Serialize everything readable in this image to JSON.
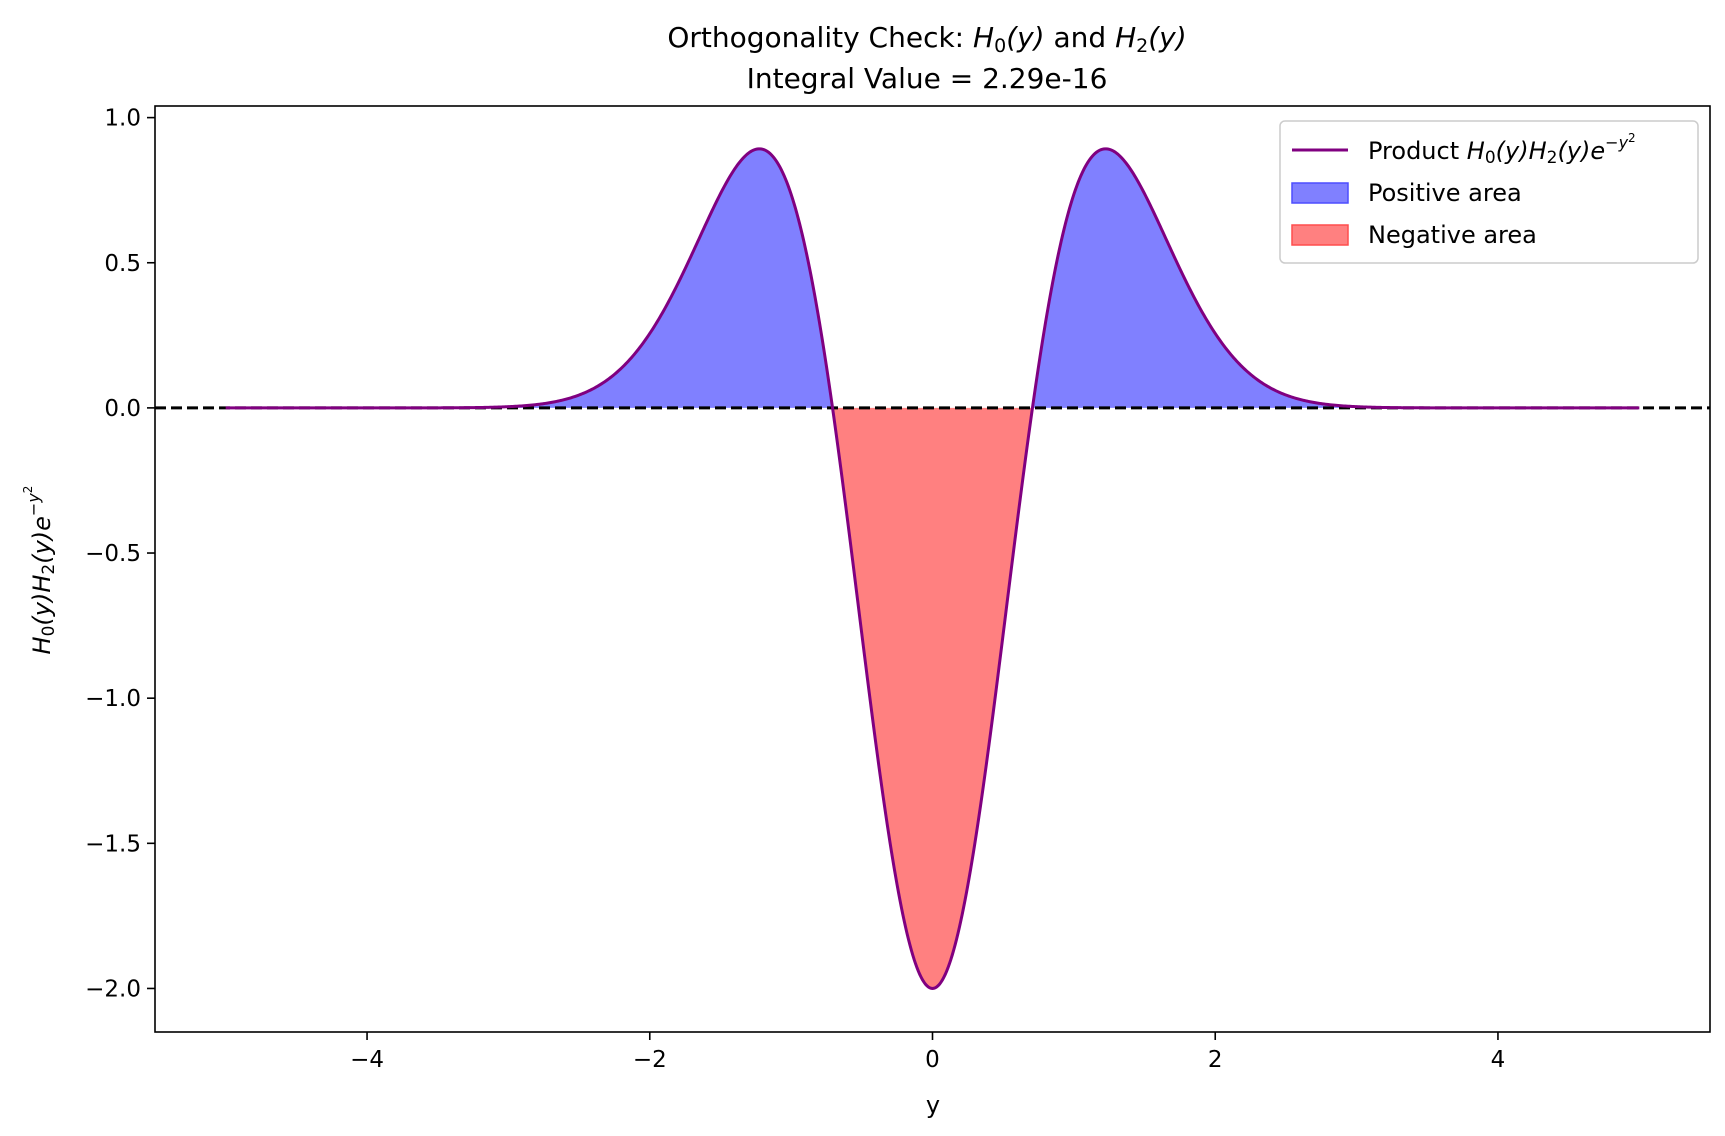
{
  "chart_data": {
    "type": "area",
    "title": {
      "line1_prefix": "Orthogonality Check: ",
      "line1_h0": "H",
      "line1_h0_sub": "0",
      "line1_h0_arg": "(y)",
      "line1_and": " and ",
      "line1_h2": "H",
      "line1_h2_sub": "2",
      "line1_h2_arg": "(y)",
      "line2": "Integral Value = 2.29e-16"
    },
    "xlabel": "y",
    "ylabel": {
      "h0": "H",
      "h0_sub": "0",
      "h0_arg": "(y)",
      "h2": "H",
      "h2_sub": "2",
      "h2_arg": "(y)",
      "exp_base": "e",
      "exp_power": "−y",
      "exp_power_sq": "2"
    },
    "xlim": [
      -5.5,
      5.5
    ],
    "ylim": [
      -2.15,
      1.04
    ],
    "x_range": [
      -5,
      5
    ],
    "function": "H0(y) * H2(y) * exp(-y^2), H0 = 1, H2 = 4y^2 - 2",
    "xticks": [
      -4,
      -2,
      0,
      2,
      4
    ],
    "xtick_labels": [
      "−4",
      "−2",
      "0",
      "2",
      "4"
    ],
    "yticks": [
      1.0,
      0.5,
      0.0,
      -0.5,
      -1.0,
      -1.5,
      -2.0
    ],
    "ytick_labels": [
      "1.0",
      "0.5",
      "0.0",
      "−0.5",
      "−1.0",
      "−1.5",
      "−2.0"
    ],
    "reference_line": {
      "y": 0,
      "style": "dashed",
      "color": "#000000"
    },
    "key_points": [
      {
        "y": -1.2247,
        "value": 0.8925
      },
      {
        "y": -0.7071,
        "value": 0.0
      },
      {
        "y": 0.0,
        "value": -2.0
      },
      {
        "y": 0.7071,
        "value": 0.0
      },
      {
        "y": 1.2247,
        "value": 0.8925
      }
    ],
    "series": [
      {
        "name": "Product",
        "legend_math": {
          "h0": "H",
          "h0_sub": "0",
          "h0_arg": "(y)",
          "h2": "H",
          "h2_sub": "2",
          "h2_arg": "(y)",
          "exp_base": "e",
          "exp_power": "−y",
          "exp_power_sq": "2"
        },
        "kind": "line",
        "color": "#800080"
      },
      {
        "name": "Positive area",
        "kind": "fill",
        "color": "#8080ff",
        "edge": "#4d4dff"
      },
      {
        "name": "Negative area",
        "kind": "fill",
        "color": "#ff8080",
        "edge": "#ff4d4d"
      }
    ],
    "legend_position": "top-right",
    "grid": false
  }
}
